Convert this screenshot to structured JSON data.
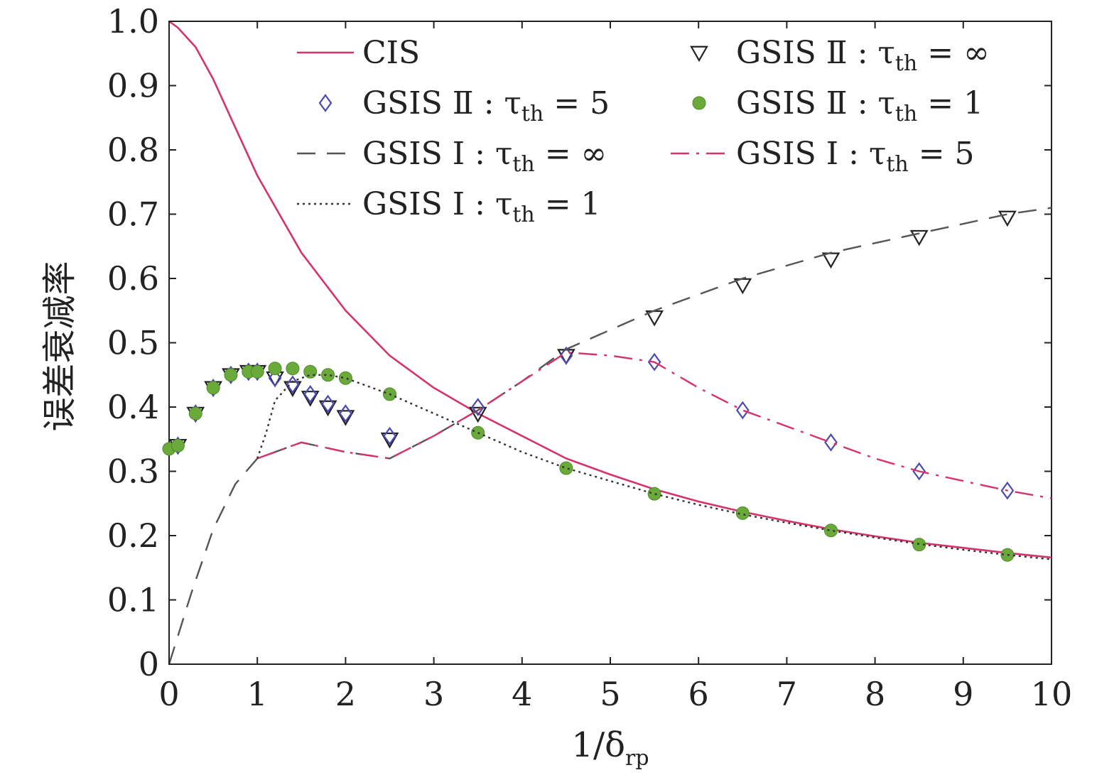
{
  "chart_data": {
    "type": "line",
    "xlabel": {
      "main": "1/δ",
      "sub": "rp"
    },
    "ylabel": "误差衰减率",
    "xlim": [
      0,
      10
    ],
    "ylim": [
      0,
      1.0
    ],
    "x_ticks": [
      0,
      1,
      2,
      3,
      4,
      5,
      6,
      7,
      8,
      9,
      10
    ],
    "x_tick_labels": [
      "0",
      "1",
      "2",
      "3",
      "4",
      "5",
      "6",
      "7",
      "8",
      "9",
      "10"
    ],
    "y_ticks": [
      0,
      0.1,
      0.2,
      0.3,
      0.4,
      0.5,
      0.6,
      0.7,
      0.8,
      0.9,
      1.0
    ],
    "y_tick_labels": [
      "0",
      "0.1",
      "0.2",
      "0.3",
      "0.4",
      "0.5",
      "0.6",
      "0.7",
      "0.8",
      "0.9",
      "1.0"
    ],
    "grid": false,
    "legend_position": "top",
    "series": [
      {
        "name": "CIS",
        "legend_main": "CIS",
        "legend_sub": "",
        "legend_tail": "",
        "style": "solid-line",
        "color": "#d6336c",
        "x": [
          0,
          0.1,
          0.3,
          0.5,
          0.7,
          1.0,
          1.5,
          2.0,
          2.5,
          3.0,
          3.5,
          4.0,
          4.5,
          5.0,
          5.5,
          6.0,
          6.5,
          7.0,
          7.5,
          8.0,
          8.5,
          9.0,
          9.5,
          10.0
        ],
        "y": [
          1.0,
          0.99,
          0.96,
          0.91,
          0.85,
          0.76,
          0.64,
          0.55,
          0.48,
          0.43,
          0.39,
          0.355,
          0.32,
          0.295,
          0.272,
          0.253,
          0.237,
          0.223,
          0.21,
          0.199,
          0.189,
          0.181,
          0.173,
          0.166
        ]
      },
      {
        "name": "GSIS Ⅱ : τth = ∞",
        "legend_main": "GSIS Ⅱ : τ",
        "legend_sub": "th",
        "legend_tail": " = ∞",
        "style": "triangle-down-marker",
        "color": "#222222",
        "x": [
          0.1,
          0.3,
          0.5,
          0.7,
          0.9,
          1.0,
          1.2,
          1.4,
          1.6,
          1.8,
          2.0,
          2.5,
          3.5,
          4.5,
          5.5,
          6.5,
          7.5,
          8.5,
          9.5
        ],
        "y": [
          0.34,
          0.39,
          0.43,
          0.45,
          0.455,
          0.455,
          0.445,
          0.43,
          0.415,
          0.4,
          0.385,
          0.35,
          0.39,
          0.48,
          0.54,
          0.59,
          0.63,
          0.665,
          0.695
        ]
      },
      {
        "name": "GSIS Ⅱ : τth = 5",
        "legend_main": "GSIS Ⅱ : τ",
        "legend_sub": "th",
        "legend_tail": " = 5",
        "style": "diamond-marker",
        "color": "#4a4ab0",
        "x": [
          0.1,
          0.3,
          0.5,
          0.7,
          0.9,
          1.0,
          1.2,
          1.4,
          1.6,
          1.8,
          2.0,
          2.5,
          3.5,
          4.5,
          5.5,
          6.5,
          7.5,
          8.5,
          9.5
        ],
        "y": [
          0.34,
          0.39,
          0.43,
          0.45,
          0.455,
          0.455,
          0.445,
          0.435,
          0.42,
          0.405,
          0.39,
          0.355,
          0.4,
          0.48,
          0.47,
          0.395,
          0.345,
          0.3,
          0.27
        ]
      },
      {
        "name": "GSIS Ⅱ : τth = 1",
        "legend_main": "GSIS Ⅱ : τ",
        "legend_sub": "th",
        "legend_tail": " = 1",
        "style": "filled-circle-marker",
        "color": "#6aaa3a",
        "x": [
          0,
          0.1,
          0.3,
          0.5,
          0.7,
          0.9,
          1.0,
          1.2,
          1.4,
          1.6,
          1.8,
          2.0,
          2.5,
          3.5,
          4.5,
          5.5,
          6.5,
          7.5,
          8.5,
          9.5
        ],
        "y": [
          0.335,
          0.34,
          0.39,
          0.43,
          0.45,
          0.455,
          0.455,
          0.46,
          0.46,
          0.455,
          0.45,
          0.445,
          0.42,
          0.36,
          0.305,
          0.265,
          0.235,
          0.208,
          0.186,
          0.17
        ]
      },
      {
        "name": "GSIS Ⅰ : τth = ∞",
        "legend_main": "GSIS Ⅰ : τ",
        "legend_sub": "th",
        "legend_tail": " = ∞",
        "style": "long-dash-line",
        "color": "#555555",
        "x": [
          0,
          0.25,
          0.5,
          0.75,
          1.0,
          1.5,
          2.0,
          2.5,
          3.0,
          3.5,
          4.0,
          4.5,
          5.0,
          5.5,
          6.0,
          6.5,
          7.0,
          7.5,
          8.0,
          8.5,
          9.0,
          9.5,
          10.0
        ],
        "y": [
          0.0,
          0.11,
          0.21,
          0.28,
          0.32,
          0.345,
          0.33,
          0.32,
          0.355,
          0.395,
          0.44,
          0.49,
          0.52,
          0.55,
          0.575,
          0.6,
          0.62,
          0.64,
          0.655,
          0.67,
          0.685,
          0.7,
          0.71
        ]
      },
      {
        "name": "GSIS Ⅰ : τth = 5",
        "legend_main": "GSIS Ⅰ : τ",
        "legend_sub": "th",
        "legend_tail": " = 5",
        "style": "dash-dot-line",
        "color": "#d6336c",
        "x": [
          1.0,
          1.5,
          2.0,
          2.5,
          3.0,
          3.5,
          4.0,
          4.5,
          5.0,
          5.5,
          6.0,
          6.5,
          7.0,
          7.5,
          8.0,
          8.5,
          9.0,
          9.5,
          10.0
        ],
        "y": [
          0.32,
          0.345,
          0.33,
          0.32,
          0.355,
          0.395,
          0.44,
          0.485,
          0.48,
          0.47,
          0.43,
          0.395,
          0.37,
          0.345,
          0.32,
          0.3,
          0.285,
          0.27,
          0.258
        ]
      },
      {
        "name": "GSIS Ⅰ : τth = 1",
        "legend_main": "GSIS Ⅰ : τ",
        "legend_sub": "th",
        "legend_tail": " = 1",
        "style": "dotted-line",
        "color": "#333333",
        "x": [
          1.0,
          1.1,
          1.2,
          1.4,
          1.6,
          1.8,
          2.0,
          2.5,
          3.0,
          3.5,
          4.0,
          4.5,
          5.0,
          5.5,
          6.0,
          6.5,
          7.0,
          7.5,
          8.0,
          8.5,
          9.0,
          9.5,
          10.0
        ],
        "y": [
          0.32,
          0.36,
          0.41,
          0.44,
          0.45,
          0.45,
          0.445,
          0.42,
          0.39,
          0.36,
          0.33,
          0.305,
          0.285,
          0.265,
          0.248,
          0.233,
          0.22,
          0.208,
          0.197,
          0.187,
          0.178,
          0.17,
          0.163
        ]
      }
    ]
  }
}
